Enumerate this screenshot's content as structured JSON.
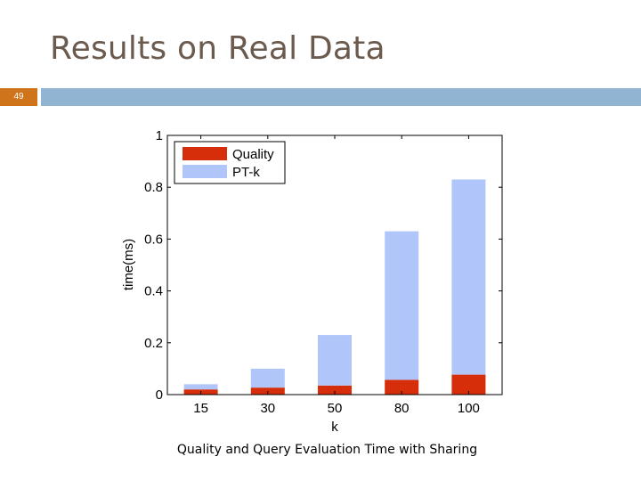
{
  "slide": {
    "title": "Results on Real Data",
    "number": "49",
    "caption": "Quality and Query Evaluation Time with Sharing"
  },
  "colors": {
    "title": "#6b5a4e",
    "number_box": "#d0741c",
    "header_strip": "#90b4d2",
    "quality": "#d62d0a",
    "ptk": "#b0c6fa"
  },
  "chart_data": {
    "type": "bar",
    "stacked": true,
    "categories": [
      "15",
      "30",
      "50",
      "80",
      "100"
    ],
    "series": [
      {
        "name": "Quality",
        "values": [
          0.02,
          0.027,
          0.035,
          0.057,
          0.077
        ]
      },
      {
        "name": "PT-k",
        "values": [
          0.02,
          0.073,
          0.195,
          0.573,
          0.753
        ]
      }
    ],
    "totals": [
      0.04,
      0.1,
      0.23,
      0.63,
      0.83
    ],
    "xlabel": "k",
    "ylabel": "time(ms)",
    "ylim": [
      0,
      1
    ],
    "yticks": [
      0,
      0.2,
      0.4,
      0.6,
      0.8,
      1
    ],
    "ytick_labels": [
      "0",
      "0.2",
      "0.4",
      "0.6",
      "0.8",
      "1"
    ],
    "legend_position": "top-left",
    "grid": false
  }
}
